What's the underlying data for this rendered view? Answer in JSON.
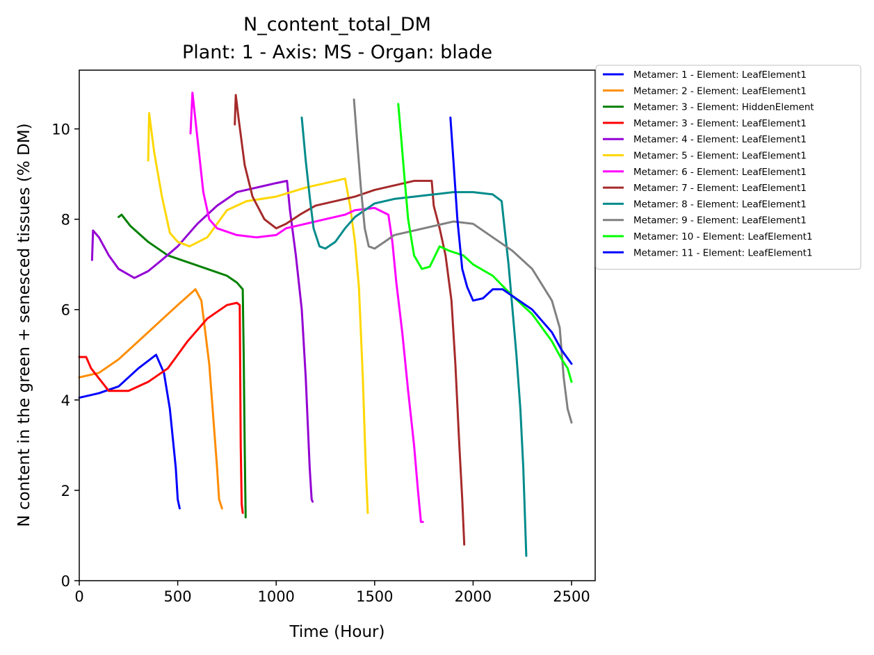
{
  "chart_data": {
    "type": "line",
    "title": "N_content_total_DM",
    "subtitle": "Plant: 1 - Axis: MS - Organ: blade",
    "xlabel": "Time (Hour)",
    "ylabel": "N content in the green + senesced tissues (% DM)",
    "xlim": [
      0,
      2620
    ],
    "ylim": [
      0,
      11.3
    ],
    "xticks": [
      0,
      500,
      1000,
      1500,
      2000,
      2500
    ],
    "yticks": [
      0,
      2,
      4,
      6,
      8,
      10
    ],
    "grid": false,
    "legend_position": "outside-top-right",
    "series": [
      {
        "name": "Metamer: 1 - Element: LeafElement1",
        "color": "#0000ff",
        "points": [
          [
            0,
            4.05
          ],
          [
            100,
            4.15
          ],
          [
            200,
            4.3
          ],
          [
            300,
            4.7
          ],
          [
            390,
            5.0
          ],
          [
            430,
            4.6
          ],
          [
            460,
            3.8
          ],
          [
            490,
            2.5
          ],
          [
            500,
            1.8
          ],
          [
            510,
            1.6
          ]
        ]
      },
      {
        "name": "Metamer: 2 - Element: LeafElement1",
        "color": "#ff8c00",
        "points": [
          [
            0,
            4.5
          ],
          [
            100,
            4.6
          ],
          [
            200,
            4.9
          ],
          [
            300,
            5.3
          ],
          [
            400,
            5.7
          ],
          [
            500,
            6.1
          ],
          [
            590,
            6.45
          ],
          [
            620,
            6.2
          ],
          [
            660,
            4.8
          ],
          [
            700,
            2.5
          ],
          [
            710,
            1.8
          ],
          [
            725,
            1.6
          ]
        ]
      },
      {
        "name": "Metamer: 3 - Element: HiddenElement",
        "color": "#008000",
        "points": [
          [
            200,
            8.05
          ],
          [
            215,
            8.1
          ],
          [
            260,
            7.85
          ],
          [
            350,
            7.5
          ],
          [
            450,
            7.2
          ],
          [
            550,
            7.05
          ],
          [
            650,
            6.9
          ],
          [
            750,
            6.75
          ],
          [
            800,
            6.6
          ],
          [
            830,
            6.45
          ],
          [
            835,
            5.0
          ],
          [
            840,
            3.0
          ],
          [
            845,
            1.4
          ]
        ]
      },
      {
        "name": "Metamer: 3 - Element: LeafElement1",
        "color": "#ff0000",
        "points": [
          [
            0,
            4.95
          ],
          [
            35,
            4.95
          ],
          [
            60,
            4.7
          ],
          [
            150,
            4.2
          ],
          [
            250,
            4.2
          ],
          [
            350,
            4.4
          ],
          [
            450,
            4.7
          ],
          [
            550,
            5.3
          ],
          [
            650,
            5.8
          ],
          [
            750,
            6.1
          ],
          [
            800,
            6.15
          ],
          [
            815,
            6.1
          ],
          [
            820,
            3.0
          ],
          [
            825,
            1.7
          ],
          [
            830,
            1.5
          ]
        ]
      },
      {
        "name": "Metamer: 4 - Element: LeafElement1",
        "color": "#9400d3",
        "points": [
          [
            65,
            7.1
          ],
          [
            70,
            7.75
          ],
          [
            100,
            7.6
          ],
          [
            150,
            7.2
          ],
          [
            200,
            6.9
          ],
          [
            280,
            6.7
          ],
          [
            350,
            6.85
          ],
          [
            420,
            7.1
          ],
          [
            500,
            7.4
          ],
          [
            600,
            7.9
          ],
          [
            700,
            8.3
          ],
          [
            800,
            8.6
          ],
          [
            900,
            8.7
          ],
          [
            1000,
            8.8
          ],
          [
            1055,
            8.85
          ],
          [
            1070,
            8.2
          ],
          [
            1100,
            7.2
          ],
          [
            1130,
            6.0
          ],
          [
            1150,
            4.5
          ],
          [
            1170,
            2.5
          ],
          [
            1180,
            1.8
          ],
          [
            1185,
            1.75
          ]
        ]
      },
      {
        "name": "Metamer: 5 - Element: LeafElement1",
        "color": "#ffd700",
        "points": [
          [
            350,
            9.3
          ],
          [
            355,
            10.35
          ],
          [
            380,
            9.5
          ],
          [
            420,
            8.5
          ],
          [
            460,
            7.7
          ],
          [
            500,
            7.5
          ],
          [
            560,
            7.4
          ],
          [
            650,
            7.6
          ],
          [
            700,
            7.9
          ],
          [
            750,
            8.2
          ],
          [
            850,
            8.4
          ],
          [
            1000,
            8.5
          ],
          [
            1150,
            8.7
          ],
          [
            1300,
            8.85
          ],
          [
            1350,
            8.9
          ],
          [
            1375,
            8.3
          ],
          [
            1400,
            7.5
          ],
          [
            1420,
            6.5
          ],
          [
            1440,
            4.5
          ],
          [
            1455,
            2.5
          ],
          [
            1465,
            1.5
          ]
        ]
      },
      {
        "name": "Metamer: 6 - Element: LeafElement1",
        "color": "#ff00ff",
        "points": [
          [
            565,
            9.9
          ],
          [
            575,
            10.8
          ],
          [
            600,
            9.8
          ],
          [
            630,
            8.6
          ],
          [
            660,
            8.0
          ],
          [
            700,
            7.8
          ],
          [
            800,
            7.65
          ],
          [
            900,
            7.6
          ],
          [
            1000,
            7.65
          ],
          [
            1050,
            7.8
          ],
          [
            1150,
            7.9
          ],
          [
            1250,
            8.0
          ],
          [
            1350,
            8.1
          ],
          [
            1400,
            8.2
          ],
          [
            1500,
            8.25
          ],
          [
            1570,
            8.1
          ],
          [
            1590,
            7.5
          ],
          [
            1610,
            6.6
          ],
          [
            1640,
            5.5
          ],
          [
            1670,
            4.2
          ],
          [
            1700,
            3.0
          ],
          [
            1720,
            2.0
          ],
          [
            1735,
            1.3
          ],
          [
            1745,
            1.3
          ]
        ]
      },
      {
        "name": "Metamer: 7 - Element: LeafElement1",
        "color": "#a52a2a",
        "points": [
          [
            790,
            10.1
          ],
          [
            795,
            10.75
          ],
          [
            810,
            10.2
          ],
          [
            840,
            9.2
          ],
          [
            880,
            8.5
          ],
          [
            940,
            8.0
          ],
          [
            1000,
            7.8
          ],
          [
            1050,
            7.9
          ],
          [
            1120,
            8.1
          ],
          [
            1200,
            8.3
          ],
          [
            1300,
            8.4
          ],
          [
            1400,
            8.5
          ],
          [
            1500,
            8.65
          ],
          [
            1600,
            8.75
          ],
          [
            1700,
            8.85
          ],
          [
            1790,
            8.85
          ],
          [
            1800,
            8.3
          ],
          [
            1830,
            7.8
          ],
          [
            1860,
            7.2
          ],
          [
            1890,
            6.2
          ],
          [
            1910,
            4.8
          ],
          [
            1930,
            3.0
          ],
          [
            1945,
            1.8
          ],
          [
            1955,
            0.8
          ]
        ]
      },
      {
        "name": "Metamer: 8 - Element: LeafElement1",
        "color": "#008b8b",
        "points": [
          [
            1130,
            10.25
          ],
          [
            1150,
            9.3
          ],
          [
            1170,
            8.5
          ],
          [
            1190,
            7.8
          ],
          [
            1220,
            7.4
          ],
          [
            1250,
            7.35
          ],
          [
            1300,
            7.5
          ],
          [
            1350,
            7.8
          ],
          [
            1400,
            8.05
          ],
          [
            1450,
            8.2
          ],
          [
            1500,
            8.35
          ],
          [
            1600,
            8.45
          ],
          [
            1700,
            8.5
          ],
          [
            1800,
            8.55
          ],
          [
            1900,
            8.6
          ],
          [
            2000,
            8.6
          ],
          [
            2100,
            8.55
          ],
          [
            2145,
            8.4
          ],
          [
            2160,
            7.8
          ],
          [
            2180,
            7.0
          ],
          [
            2200,
            6.0
          ],
          [
            2220,
            5.0
          ],
          [
            2240,
            3.8
          ],
          [
            2255,
            2.5
          ],
          [
            2270,
            0.55
          ]
        ]
      },
      {
        "name": "Metamer: 9 - Element: LeafElement1",
        "color": "#808080",
        "points": [
          [
            1395,
            10.65
          ],
          [
            1410,
            9.8
          ],
          [
            1430,
            8.7
          ],
          [
            1450,
            7.8
          ],
          [
            1470,
            7.4
          ],
          [
            1500,
            7.35
          ],
          [
            1550,
            7.5
          ],
          [
            1600,
            7.65
          ],
          [
            1700,
            7.75
          ],
          [
            1800,
            7.85
          ],
          [
            1900,
            7.95
          ],
          [
            2000,
            7.9
          ],
          [
            2100,
            7.6
          ],
          [
            2200,
            7.3
          ],
          [
            2300,
            6.9
          ],
          [
            2400,
            6.2
          ],
          [
            2440,
            5.6
          ],
          [
            2460,
            4.5
          ],
          [
            2480,
            3.8
          ],
          [
            2500,
            3.5
          ]
        ]
      },
      {
        "name": "Metamer: 10 - Element: LeafElement1",
        "color": "#00ff00",
        "points": [
          [
            1620,
            10.55
          ],
          [
            1635,
            9.8
          ],
          [
            1650,
            9.0
          ],
          [
            1670,
            8.0
          ],
          [
            1700,
            7.2
          ],
          [
            1740,
            6.9
          ],
          [
            1780,
            6.95
          ],
          [
            1830,
            7.4
          ],
          [
            1880,
            7.3
          ],
          [
            1950,
            7.2
          ],
          [
            2000,
            7.0
          ],
          [
            2100,
            6.75
          ],
          [
            2200,
            6.3
          ],
          [
            2300,
            5.9
          ],
          [
            2400,
            5.3
          ],
          [
            2450,
            4.9
          ],
          [
            2480,
            4.7
          ],
          [
            2500,
            4.4
          ]
        ]
      },
      {
        "name": "Metamer: 11 - Element: LeafElement1",
        "color": "#0000ff",
        "points": [
          [
            1885,
            10.25
          ],
          [
            1900,
            9.3
          ],
          [
            1920,
            8.0
          ],
          [
            1945,
            6.9
          ],
          [
            1970,
            6.5
          ],
          [
            2000,
            6.2
          ],
          [
            2050,
            6.25
          ],
          [
            2100,
            6.45
          ],
          [
            2150,
            6.45
          ],
          [
            2200,
            6.3
          ],
          [
            2300,
            6.0
          ],
          [
            2400,
            5.5
          ],
          [
            2450,
            5.1
          ],
          [
            2500,
            4.8
          ]
        ]
      }
    ]
  }
}
